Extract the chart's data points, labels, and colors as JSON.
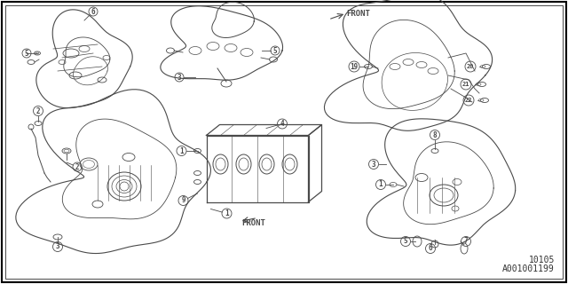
{
  "bg": "#ffffff",
  "lc": "#4a4a4a",
  "border_color": "#000000",
  "fig_width": 6.4,
  "fig_height": 3.2,
  "dpi": 100,
  "text1": "10105",
  "text2": "A001001199",
  "front1": "FRONT",
  "front2": "FRONT"
}
